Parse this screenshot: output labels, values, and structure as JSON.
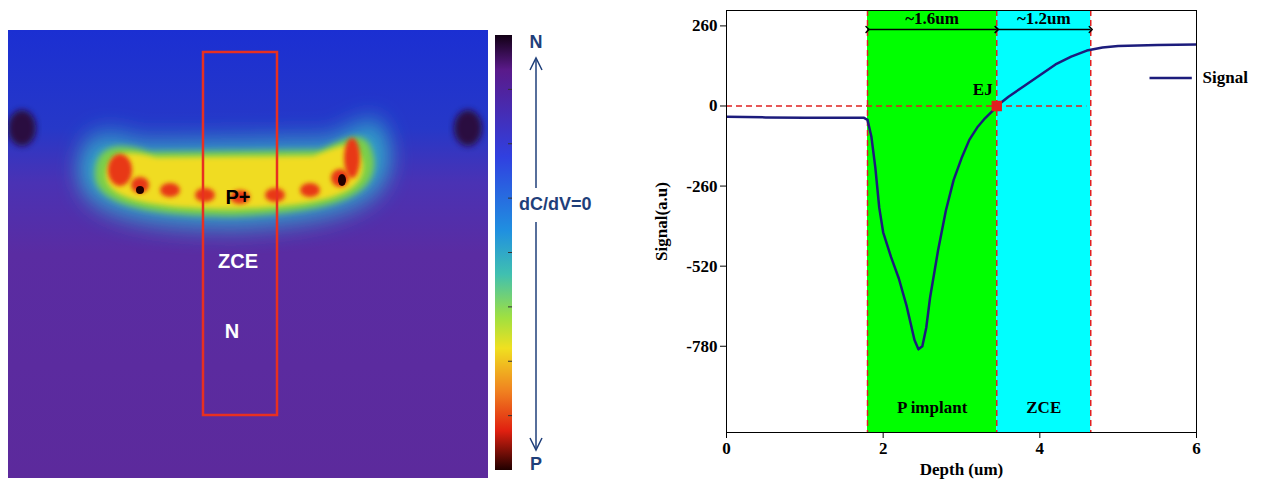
{
  "chart_data": {
    "type": "line",
    "xlabel": "Depth (um)",
    "ylabel": "Signal(a.u)",
    "xlim": [
      0,
      6
    ],
    "ylim": [
      -1060,
      310
    ],
    "xticks": [
      0,
      2,
      4,
      6
    ],
    "yticks": [
      -780,
      -520,
      -260,
      0,
      260
    ],
    "legend": "top-right",
    "x": [
      0,
      0.5,
      1,
      1.5,
      1.75,
      1.8,
      1.85,
      1.9,
      1.95,
      2.0,
      2.05,
      2.1,
      2.2,
      2.3,
      2.4,
      2.45,
      2.5,
      2.55,
      2.6,
      2.7,
      2.8,
      2.9,
      3.0,
      3.1,
      3.2,
      3.3,
      3.4,
      3.45,
      3.6,
      3.8,
      4.0,
      4.2,
      4.4,
      4.6,
      4.8,
      5.0,
      5.5,
      6.0
    ],
    "series": [
      {
        "name": "Signal",
        "color": "#1c1c7c",
        "values": [
          -35,
          -37,
          -38,
          -38,
          -38,
          -45,
          -100,
          -200,
          -330,
          -410,
          -450,
          -490,
          -560,
          -650,
          -760,
          -790,
          -780,
          -720,
          -620,
          -470,
          -340,
          -240,
          -170,
          -110,
          -70,
          -40,
          -15,
          0,
          30,
          65,
          100,
          135,
          160,
          180,
          190,
          195,
          198,
          200
        ]
      }
    ],
    "regions": [
      {
        "label": "P implant",
        "x0": 1.8,
        "x1": 3.45,
        "color": "#00ff00",
        "width_label": "~1.6um"
      },
      {
        "label": "ZCE",
        "x0": 3.45,
        "x1": 4.65,
        "color": "#00ffff",
        "width_label": "~1.2um"
      }
    ],
    "reference_lines": {
      "x": [
        1.8,
        3.45,
        4.65
      ],
      "y": 0,
      "y_x_range": [
        0,
        4.6
      ],
      "color": "#e02020",
      "line_style": "dashed"
    },
    "point": {
      "label": "EJ",
      "x": 3.45,
      "y": 0,
      "color": "#e02020",
      "marker": "square"
    }
  },
  "image_panel": {
    "labels": [
      "P+",
      "ZCE",
      "N"
    ],
    "colorbar": {
      "top": "N",
      "middle": "dC/dV=0",
      "bottom": "P"
    }
  }
}
